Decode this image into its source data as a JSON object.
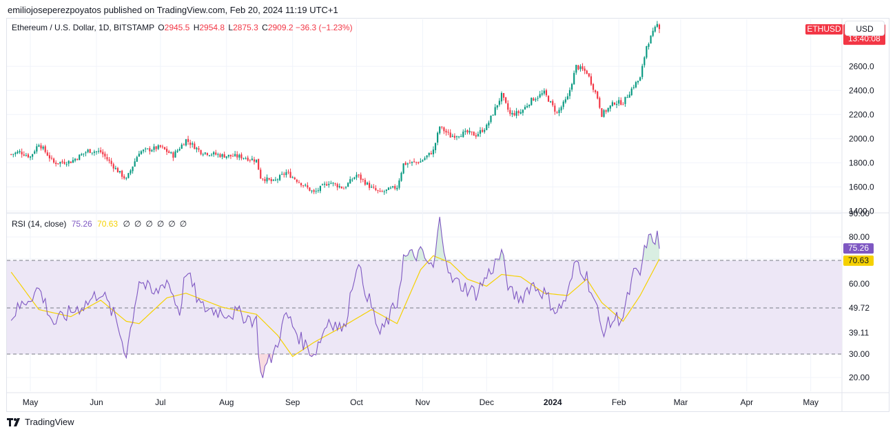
{
  "header": {
    "title": "emiliojoseperezpoyatos published on TradingView.com, Feb 20, 2024 11:19 UTC+1"
  },
  "legend": {
    "symbol": "Ethereum / U.S. Dollar, 1D, BITSTAMP",
    "open_label": "O",
    "open": "2945.5",
    "high_label": "H",
    "high": "2954.8",
    "low_label": "L",
    "low": "2875.3",
    "close_label": "C",
    "close": "2909.2",
    "change": "−36.3 (−1.23%)"
  },
  "currency_button": "USD",
  "price_tag": {
    "symbol": "ETHUSD",
    "price": "2909.2",
    "countdown": "13:40:08"
  },
  "rsi_legend": {
    "label": "RSI (14, close)",
    "rsi": "75.26",
    "ma": "70.63",
    "na": "∅∅∅∅∅∅"
  },
  "rsi_tags": {
    "rsi": "75.26",
    "ma": "70.63"
  },
  "footer": {
    "brand": "TradingView"
  },
  "colors": {
    "up": "#089981",
    "down": "#f23645",
    "rsi_line": "#7e57c2",
    "rsi_ma": "#f5d100",
    "band_fill": "#ede7f6",
    "grid": "#f0f3fa"
  },
  "chart_data": [
    {
      "type": "candlestick",
      "title": "Ethereum / U.S. Dollar, 1D, BITSTAMP",
      "x_tick_labels": [
        "May",
        "Jun",
        "Jul",
        "Aug",
        "Sep",
        "Oct",
        "Nov",
        "Dec",
        "2024",
        "Feb",
        "Mar",
        "Apr",
        "May"
      ],
      "y_tick_labels": [
        "1400.0",
        "1600.0",
        "1800.0",
        "2000.0",
        "2200.0",
        "2400.0",
        "2600.0"
      ],
      "ylim": [
        1390,
        2990
      ],
      "anchors": [
        [
          "Apr 22",
          1870
        ],
        [
          "Apr 26",
          1890
        ],
        [
          "May 1",
          1850
        ],
        [
          "May 5",
          1960
        ],
        [
          "May 12",
          1800
        ],
        [
          "May 20",
          1810
        ],
        [
          "May 28",
          1900
        ],
        [
          "Jun 3",
          1890
        ],
        [
          "Jun 10",
          1750
        ],
        [
          "Jun 15",
          1660
        ],
        [
          "Jun 21",
          1890
        ],
        [
          "Jul 1",
          1930
        ],
        [
          "Jul 7",
          1860
        ],
        [
          "Jul 13",
          1990
        ],
        [
          "Jul 20",
          1890
        ],
        [
          "Jul 30",
          1860
        ],
        [
          "Aug 8",
          1850
        ],
        [
          "Aug 15",
          1820
        ],
        [
          "Aug 17",
          1680
        ],
        [
          "Aug 23",
          1640
        ],
        [
          "Aug 29",
          1720
        ],
        [
          "Sep 5",
          1630
        ],
        [
          "Sep 11",
          1550
        ],
        [
          "Sep 18",
          1640
        ],
        [
          "Sep 25",
          1590
        ],
        [
          "Oct 1",
          1700
        ],
        [
          "Oct 8",
          1590
        ],
        [
          "Oct 12",
          1550
        ],
        [
          "Oct 20",
          1600
        ],
        [
          "Oct 23",
          1790
        ],
        [
          "Oct 31",
          1810
        ],
        [
          "Nov 6",
          1900
        ],
        [
          "Nov 9",
          2100
        ],
        [
          "Nov 14",
          2020
        ],
        [
          "Nov 22",
          2050
        ],
        [
          "Nov 26",
          2030
        ],
        [
          "Dec 1",
          2100
        ],
        [
          "Dec 8",
          2360
        ],
        [
          "Dec 12",
          2200
        ],
        [
          "Dec 17",
          2220
        ],
        [
          "Dec 22",
          2320
        ],
        [
          "Dec 28",
          2380
        ],
        [
          "Jan 3",
          2210
        ],
        [
          "Jan 8",
          2340
        ],
        [
          "Jan 12",
          2600
        ],
        [
          "Jan 17",
          2550
        ],
        [
          "Jan 22",
          2340
        ],
        [
          "Jan 24",
          2200
        ],
        [
          "Jan 30",
          2300
        ],
        [
          "Feb 3",
          2300
        ],
        [
          "Feb 8",
          2440
        ],
        [
          "Feb 11",
          2500
        ],
        [
          "Feb 14",
          2770
        ],
        [
          "Feb 19",
          2945
        ],
        [
          "Feb 20",
          2909
        ]
      ],
      "last": {
        "open": 2945.5,
        "high": 2954.8,
        "low": 2875.3,
        "close": 2909.2
      }
    },
    {
      "type": "line",
      "title": "RSI (14, close)",
      "y_tick_labels": [
        "20.00",
        "30.00",
        "39.11",
        "49.72",
        "60.00",
        "70.63",
        "80.00",
        "90.00"
      ],
      "ylim": [
        15,
        90
      ],
      "bands": {
        "upper": 70,
        "middle": 50,
        "lower": 30
      },
      "series": [
        {
          "name": "RSI",
          "anchors": [
            [
              "Apr 22",
              46
            ],
            [
              "Apr 28",
              52
            ],
            [
              "May 5",
              58
            ],
            [
              "May 12",
              43
            ],
            [
              "May 20",
              48
            ],
            [
              "May 28",
              52
            ],
            [
              "Jun 3",
              57
            ],
            [
              "Jun 10",
              45
            ],
            [
              "Jun 15",
              30
            ],
            [
              "Jun 21",
              62
            ],
            [
              "Jun 28",
              55
            ],
            [
              "Jul 4",
              62
            ],
            [
              "Jul 10",
              48
            ],
            [
              "Jul 13",
              66
            ],
            [
              "Jul 20",
              50
            ],
            [
              "Jul 30",
              48
            ],
            [
              "Aug 8",
              47
            ],
            [
              "Aug 15",
              44
            ],
            [
              "Aug 17",
              21
            ],
            [
              "Aug 23",
              30
            ],
            [
              "Aug 29",
              47
            ],
            [
              "Sep 5",
              36
            ],
            [
              "Sep 11",
              30
            ],
            [
              "Sep 18",
              45
            ],
            [
              "Sep 25",
              40
            ],
            [
              "Oct 1",
              69
            ],
            [
              "Oct 8",
              50
            ],
            [
              "Oct 12",
              38
            ],
            [
              "Oct 20",
              52
            ],
            [
              "Oct 23",
              71
            ],
            [
              "Oct 31",
              73
            ],
            [
              "Nov 6",
              66
            ],
            [
              "Nov 9",
              87
            ],
            [
              "Nov 14",
              62
            ],
            [
              "Nov 22",
              58
            ],
            [
              "Nov 26",
              56
            ],
            [
              "Dec 1",
              63
            ],
            [
              "Dec 8",
              73
            ],
            [
              "Dec 12",
              56
            ],
            [
              "Dec 17",
              54
            ],
            [
              "Dec 22",
              60
            ],
            [
              "Dec 28",
              56
            ],
            [
              "Jan 3",
              48
            ],
            [
              "Jan 8",
              55
            ],
            [
              "Jan 12",
              70
            ],
            [
              "Jan 17",
              63
            ],
            [
              "Jan 22",
              48
            ],
            [
              "Jan 24",
              40
            ],
            [
              "Jan 30",
              45
            ],
            [
              "Feb 3",
              46
            ],
            [
              "Feb 8",
              64
            ],
            [
              "Feb 11",
              64
            ],
            [
              "Feb 14",
              78
            ],
            [
              "Feb 19",
              80
            ],
            [
              "Feb 20",
              75
            ]
          ]
        },
        {
          "name": "RSI-based MA",
          "anchors": [
            [
              "Apr 22",
              65
            ],
            [
              "May 5",
              49
            ],
            [
              "May 20",
              46
            ],
            [
              "Jun 3",
              53
            ],
            [
              "Jun 15",
              44
            ],
            [
              "Jun 21",
              43
            ],
            [
              "Jul 4",
              54
            ],
            [
              "Jul 13",
              56
            ],
            [
              "Jul 30",
              50
            ],
            [
              "Aug 15",
              47
            ],
            [
              "Aug 25",
              38
            ],
            [
              "Sep 1",
              29
            ],
            [
              "Sep 11",
              35
            ],
            [
              "Sep 25",
              42
            ],
            [
              "Oct 8",
              49
            ],
            [
              "Oct 20",
              43
            ],
            [
              "Oct 31",
              66
            ],
            [
              "Nov 6",
              72
            ],
            [
              "Nov 14",
              69
            ],
            [
              "Nov 22",
              62
            ],
            [
              "Dec 1",
              59
            ],
            [
              "Dec 8",
              64
            ],
            [
              "Dec 17",
              63
            ],
            [
              "Dec 28",
              56
            ],
            [
              "Jan 8",
              55
            ],
            [
              "Jan 17",
              62
            ],
            [
              "Jan 24",
              52
            ],
            [
              "Feb 3",
              44
            ],
            [
              "Feb 11",
              55
            ],
            [
              "Feb 20",
              70.63
            ]
          ]
        }
      ]
    }
  ]
}
